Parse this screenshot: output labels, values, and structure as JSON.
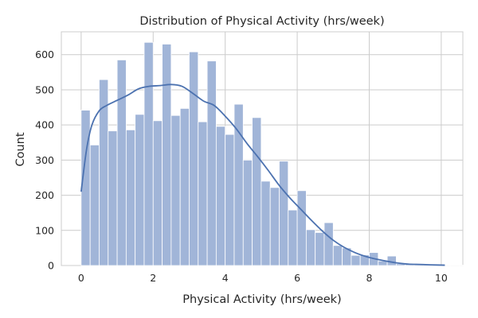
{
  "chart_data": {
    "type": "bar",
    "title": "Distribution of Physical Activity (hrs/week)",
    "xlabel": "Physical Activity (hrs/week)",
    "ylabel": "Count",
    "xlim": [
      -0.55,
      10.6
    ],
    "ylim": [
      0,
      665
    ],
    "xticks": [
      0,
      2,
      4,
      6,
      8,
      10
    ],
    "yticks": [
      0,
      100,
      200,
      300,
      400,
      500,
      600
    ],
    "grid": true,
    "bin_start": 0,
    "bin_width": 0.25,
    "values": [
      442,
      343,
      529,
      383,
      585,
      386,
      430,
      635,
      412,
      630,
      427,
      447,
      608,
      409,
      582,
      396,
      373,
      459,
      300,
      421,
      240,
      222,
      297,
      158,
      213,
      102,
      94,
      122,
      57,
      50,
      29,
      30,
      37,
      13,
      27,
      5,
      3,
      4,
      2,
      1,
      1,
      1,
      1
    ],
    "kde": {
      "x": [
        0,
        0.15,
        0.3,
        0.5,
        0.7,
        1.0,
        1.3,
        1.6,
        1.9,
        2.2,
        2.5,
        2.8,
        3.1,
        3.4,
        3.7,
        4.0,
        4.3,
        4.6,
        4.9,
        5.2,
        5.5,
        5.8,
        6.1,
        6.4,
        6.7,
        7.0,
        7.3,
        7.6,
        7.9,
        8.2,
        8.5,
        8.8,
        9.1,
        9.4,
        9.7,
        10.1
      ],
      "y": [
        210,
        330,
        400,
        440,
        455,
        470,
        485,
        503,
        510,
        512,
        515,
        510,
        490,
        468,
        455,
        425,
        390,
        348,
        310,
        270,
        228,
        192,
        160,
        128,
        98,
        72,
        52,
        37,
        26,
        18,
        12,
        7,
        4,
        3,
        2,
        1
      ]
    }
  }
}
